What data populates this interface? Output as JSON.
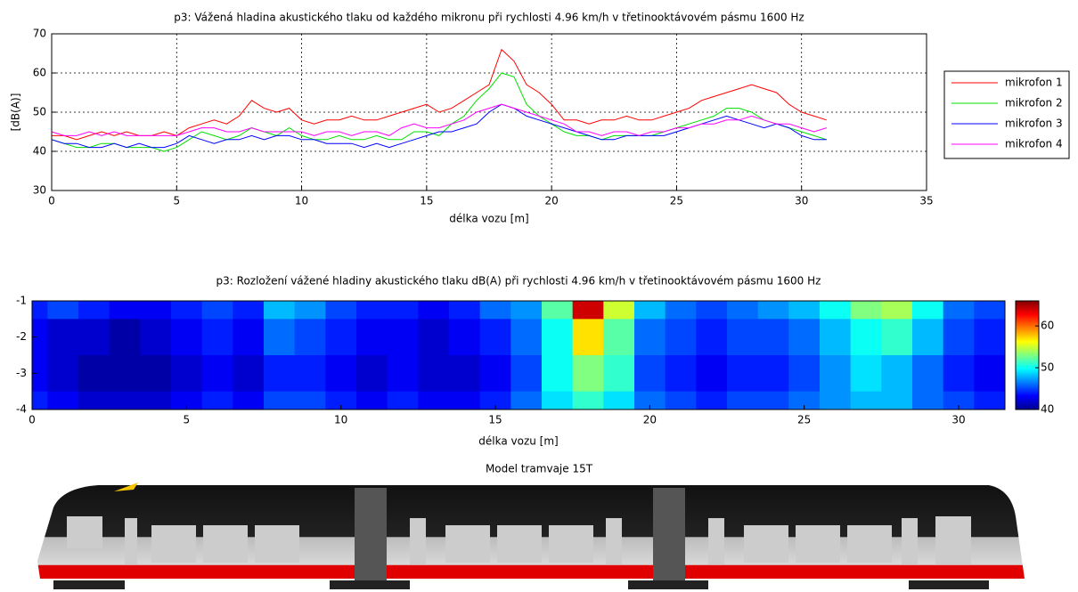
{
  "chart_data": [
    {
      "type": "line",
      "title": "p3: Vážená hladina akustického tlaku od každého mikronu při rychlosti 4.96 km/h v třetinooktávovém pásmu 1600 Hz",
      "x_label": "délka vozu [m]",
      "y_label": "[dB(A)]",
      "x": [
        0,
        0.5,
        1,
        1.5,
        2,
        2.5,
        3,
        3.5,
        4,
        4.5,
        5,
        5.5,
        6,
        6.5,
        7,
        7.5,
        8,
        8.5,
        9,
        9.5,
        10,
        10.5,
        11,
        11.5,
        12,
        12.5,
        13,
        13.5,
        14,
        14.5,
        15,
        15.5,
        16,
        16.5,
        17,
        17.5,
        18,
        18.5,
        19,
        19.5,
        20,
        20.5,
        21,
        21.5,
        22,
        22.5,
        23,
        23.5,
        24,
        24.5,
        25,
        25.5,
        26,
        26.5,
        27,
        27.5,
        28,
        28.5,
        29,
        29.5,
        30,
        30.5,
        31
      ],
      "series": [
        {
          "name": "mikrofon 1",
          "color": "#ff0000",
          "values": [
            44,
            44,
            43,
            44,
            45,
            44,
            45,
            44,
            44,
            45,
            44,
            46,
            47,
            48,
            47,
            49,
            53,
            51,
            50,
            51,
            48,
            47,
            48,
            48,
            49,
            48,
            48,
            49,
            50,
            51,
            52,
            50,
            51,
            53,
            55,
            57,
            66,
            63,
            57,
            55,
            52,
            48,
            48,
            47,
            48,
            48,
            49,
            48,
            48,
            49,
            50,
            51,
            53,
            54,
            55,
            56,
            57,
            56,
            55,
            52,
            50,
            49,
            48
          ]
        },
        {
          "name": "mikrofon 2",
          "color": "#00e000",
          "values": [
            43,
            42,
            41,
            41,
            42,
            42,
            41,
            41,
            41,
            40,
            41,
            43,
            45,
            44,
            43,
            44,
            46,
            45,
            44,
            46,
            44,
            43,
            43,
            44,
            43,
            43,
            44,
            43,
            43,
            45,
            45,
            44,
            47,
            49,
            53,
            56,
            60,
            59,
            52,
            49,
            47,
            45,
            44,
            44,
            43,
            44,
            44,
            44,
            44,
            45,
            46,
            47,
            48,
            49,
            51,
            51,
            50,
            48,
            47,
            46,
            45,
            44,
            43
          ]
        },
        {
          "name": "mikrofon 3",
          "color": "#0000ff",
          "values": [
            43,
            42,
            42,
            41,
            41,
            42,
            41,
            42,
            41,
            41,
            42,
            44,
            43,
            42,
            43,
            43,
            44,
            43,
            44,
            44,
            43,
            43,
            42,
            42,
            42,
            41,
            42,
            41,
            42,
            43,
            44,
            45,
            45,
            46,
            47,
            50,
            52,
            51,
            49,
            48,
            47,
            46,
            45,
            44,
            43,
            43,
            44,
            44,
            44,
            44,
            45,
            46,
            47,
            48,
            49,
            48,
            47,
            46,
            47,
            46,
            44,
            43,
            43
          ]
        },
        {
          "name": "mikrofon 4",
          "color": "#ff00ff",
          "values": [
            45,
            44,
            44,
            45,
            44,
            45,
            44,
            44,
            44,
            44,
            44,
            45,
            46,
            46,
            45,
            45,
            46,
            45,
            45,
            45,
            45,
            44,
            45,
            45,
            44,
            45,
            45,
            44,
            46,
            47,
            46,
            46,
            47,
            48,
            50,
            51,
            52,
            51,
            50,
            49,
            48,
            47,
            45,
            45,
            44,
            45,
            45,
            44,
            45,
            45,
            46,
            46,
            47,
            47,
            48,
            48,
            49,
            48,
            47,
            47,
            46,
            45,
            46
          ]
        }
      ],
      "xlim": [
        0,
        35
      ],
      "xticks": [
        0,
        5,
        10,
        15,
        20,
        25,
        30,
        35
      ],
      "ylim": [
        30,
        70
      ],
      "yticks": [
        30,
        40,
        50,
        60,
        70
      ],
      "grid": true,
      "legend": "right"
    },
    {
      "type": "heatmap",
      "title": "p3: Rozložení vážené hladiny akustického tlaku dB(A) při rychlosti 4.96 km/h v třetinooktávovém pásmu 1600 Hz",
      "x_label": "délka vozu [m]",
      "x": [
        0,
        1,
        2,
        3,
        4,
        5,
        6,
        7,
        8,
        9,
        10,
        11,
        12,
        13,
        14,
        15,
        16,
        17,
        18,
        19,
        20,
        21,
        22,
        23,
        24,
        25,
        26,
        27,
        28,
        29,
        30,
        31
      ],
      "y": [
        -1,
        -2,
        -3,
        -4
      ],
      "z": [
        [
          44,
          45,
          44,
          43,
          43,
          44,
          45,
          44,
          48,
          47,
          45,
          44,
          44,
          43,
          44,
          46,
          47,
          52,
          64,
          55,
          48,
          46,
          45,
          46,
          47,
          48,
          50,
          53,
          54,
          50,
          46,
          45
        ],
        [
          43,
          42,
          42,
          41,
          42,
          43,
          44,
          43,
          46,
          45,
          44,
          43,
          43,
          42,
          43,
          44,
          46,
          50,
          57,
          52,
          46,
          45,
          44,
          45,
          45,
          46,
          48,
          50,
          51,
          48,
          45,
          44
        ],
        [
          43,
          42,
          41,
          41,
          41,
          42,
          43,
          42,
          44,
          44,
          43,
          42,
          43,
          42,
          42,
          43,
          45,
          50,
          53,
          51,
          45,
          44,
          43,
          44,
          44,
          45,
          47,
          49,
          48,
          46,
          44,
          43
        ],
        [
          44,
          43,
          42,
          42,
          42,
          43,
          44,
          43,
          45,
          45,
          44,
          43,
          44,
          43,
          43,
          44,
          46,
          49,
          51,
          49,
          46,
          45,
          44,
          45,
          45,
          46,
          47,
          48,
          48,
          46,
          45,
          44
        ]
      ],
      "xlim": [
        0,
        31.5
      ],
      "xticks": [
        0,
        5,
        10,
        15,
        20,
        25,
        30
      ],
      "ylim": [
        -4,
        -1
      ],
      "yticks": [
        -1,
        -2,
        -3,
        -4
      ],
      "clim": [
        40,
        66
      ],
      "cticks": [
        40,
        50,
        60
      ],
      "colormap": "jet"
    }
  ],
  "tram_model": {
    "title": "Model tramvaje 15T"
  }
}
